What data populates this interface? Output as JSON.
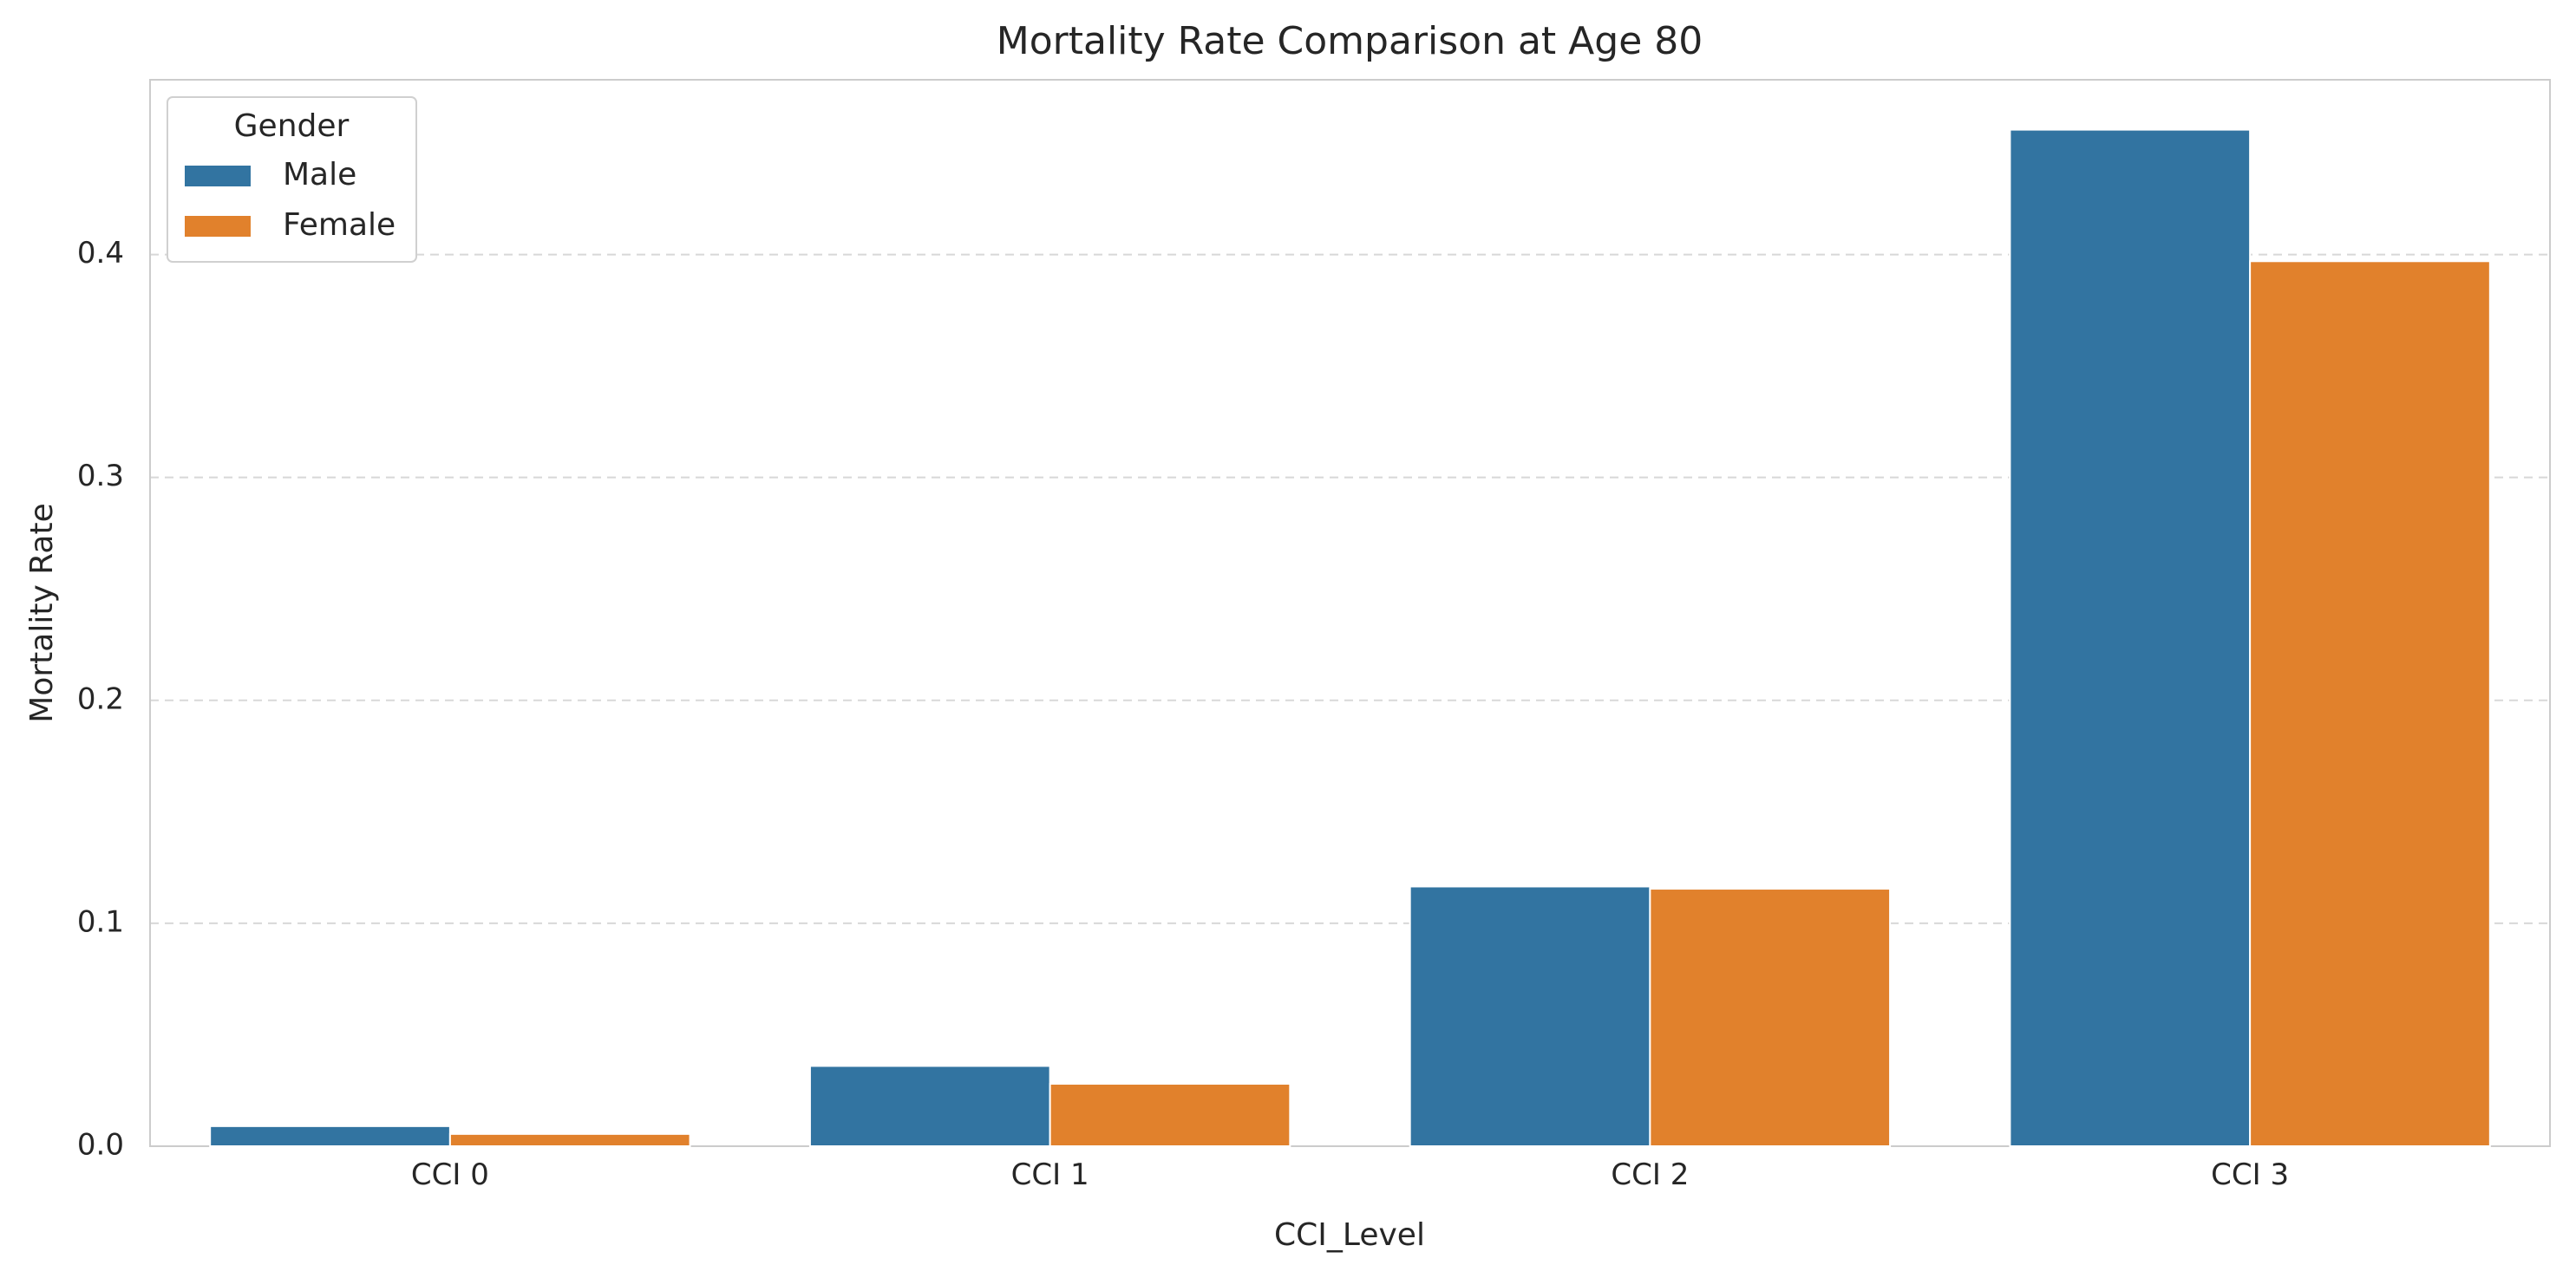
{
  "chart_data": {
    "type": "bar",
    "title": "Mortality Rate Comparison at Age 80",
    "xlabel": "CCI_Level",
    "ylabel": "Mortality Rate",
    "categories": [
      "CCI 0",
      "CCI 1",
      "CCI 2",
      "CCI 3"
    ],
    "series": [
      {
        "name": "Male",
        "color": "#3274a1",
        "values": [
          0.009,
          0.036,
          0.1165,
          0.456
        ]
      },
      {
        "name": "Female",
        "color": "#e1812c",
        "values": [
          0.0055,
          0.028,
          0.1155,
          0.397
        ]
      }
    ],
    "ylim": [
      0,
      0.4784
    ],
    "yticks": [
      0.0,
      0.1,
      0.2,
      0.3,
      0.4
    ],
    "ytick_labels": [
      "0.0",
      "0.1",
      "0.2",
      "0.3",
      "0.4"
    ],
    "grid": "y-dashed",
    "legend": {
      "title": "Gender",
      "placement": "top-left"
    }
  }
}
